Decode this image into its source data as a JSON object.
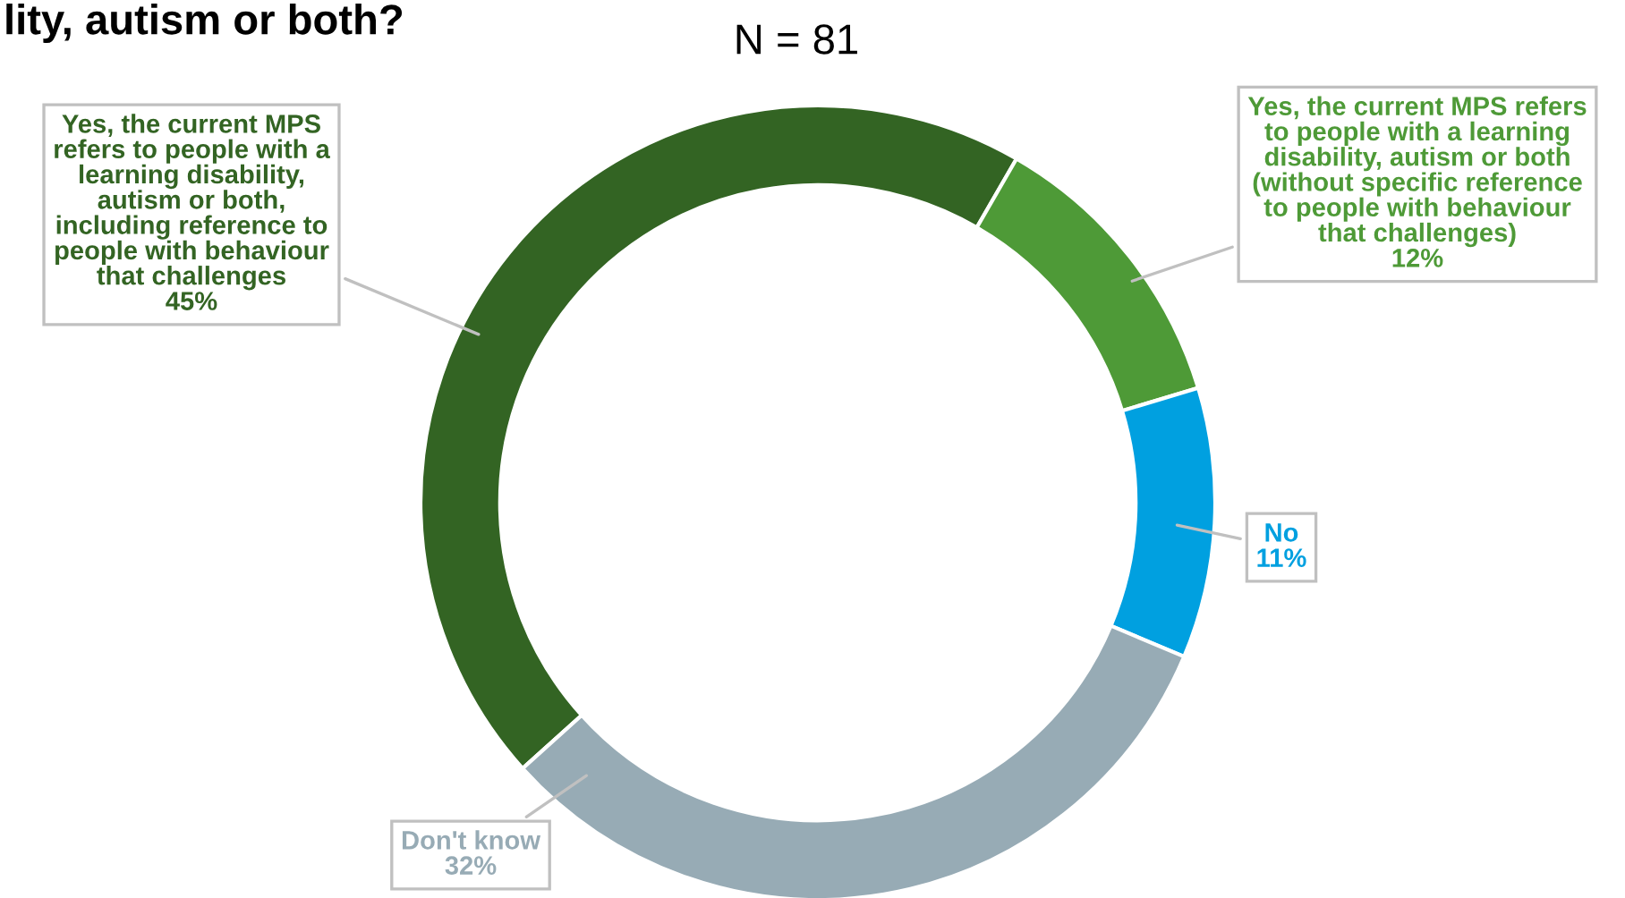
{
  "chart_data": {
    "type": "donut",
    "title": "lity, autism or both?",
    "subtitle": "N = 81",
    "categories": [
      "Yes, the current MPS\nrefers to people with a\nlearning disability,\nautism or both,\nincluding reference to\npeople with behaviour\nthat challenges",
      "Yes, the current MPS refers\nto people with a learning\ndisability, autism or both\n(without specific reference\nto people with behaviour\nthat challenges)",
      "No",
      "Don't know"
    ],
    "values": [
      45,
      12,
      11,
      32
    ],
    "colors": [
      "#336423",
      "#4e9a37",
      "#00a0e0",
      "#97abb5"
    ],
    "value_labels": [
      "45%",
      "12%",
      "11%",
      "32%"
    ],
    "legend": false
  }
}
